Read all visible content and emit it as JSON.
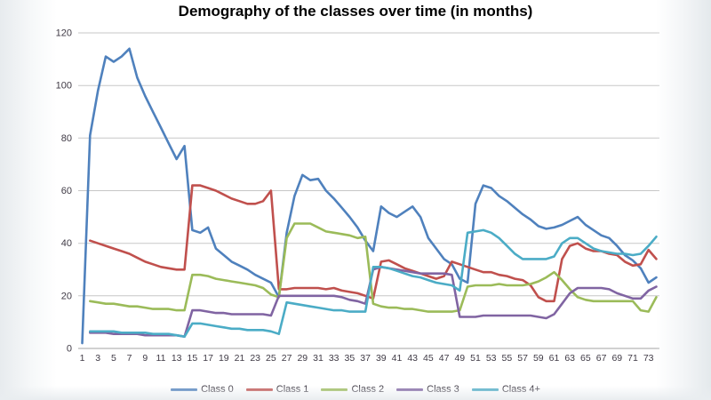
{
  "title": "Demography of the classes over time (in months)",
  "axis": {
    "label_color": "#3f3a45",
    "grid_color": "#c7c7c7",
    "axis_line_color": "#a3a3a3",
    "y_tick_labels": [
      "0",
      "20",
      "40",
      "60",
      "80",
      "100",
      "120"
    ],
    "x_tick_labels": [
      "1",
      "3",
      "5",
      "7",
      "9",
      "11",
      "13",
      "15",
      "17",
      "19",
      "21",
      "23",
      "25",
      "27",
      "29",
      "31",
      "33",
      "35",
      "37",
      "39",
      "41",
      "43",
      "45",
      "47",
      "49",
      "51",
      "53",
      "55",
      "57",
      "59",
      "61",
      "63",
      "65",
      "67",
      "69",
      "71",
      "73"
    ]
  },
  "chart_data": {
    "type": "line",
    "title": "Demography of the classes over time (in months)",
    "xlabel": "",
    "ylabel": "",
    "x_range": [
      1,
      74
    ],
    "ylim": [
      0,
      120
    ],
    "y_ticks": [
      0,
      20,
      40,
      60,
      80,
      100,
      120
    ],
    "grid": "horizontal",
    "legend_position": "bottom",
    "series": [
      {
        "name": "Class 0",
        "color": "#4F81BD",
        "values": [
          2,
          81,
          98,
          111,
          109,
          111,
          114,
          103,
          96,
          90,
          84,
          78,
          72,
          77,
          45,
          44,
          46,
          38,
          35.5,
          33,
          31.5,
          30,
          28,
          26.5,
          25,
          19.5,
          44,
          58,
          66,
          64,
          64.5,
          60,
          57,
          53.5,
          50,
          46,
          41,
          37,
          54,
          51.5,
          50,
          52,
          54,
          50,
          42,
          38,
          34,
          32,
          26.5,
          25,
          55,
          62,
          61,
          58,
          56,
          53.5,
          51,
          49,
          46.5,
          45.5,
          46,
          47,
          48.5,
          50,
          47,
          45,
          43,
          42,
          39,
          35.5,
          33.5,
          30.5,
          25,
          27
        ]
      },
      {
        "name": "Class 1",
        "color": "#C0504D",
        "values": [
          null,
          41,
          40,
          39,
          38,
          37,
          36,
          34.5,
          33,
          32,
          31,
          30.5,
          30,
          30,
          62,
          62,
          61,
          60,
          58.5,
          57,
          56,
          55,
          55,
          56,
          60,
          22.5,
          22.5,
          23,
          23,
          23,
          23,
          22.5,
          23,
          22,
          21.5,
          21,
          20,
          19,
          33,
          33.5,
          32,
          30.5,
          29.5,
          28.5,
          27.5,
          26.5,
          27.5,
          33,
          32,
          31,
          30,
          29,
          29,
          28,
          27.5,
          26.5,
          26,
          24,
          19.5,
          18,
          18,
          34,
          39,
          40,
          38,
          37,
          37,
          36,
          35.5,
          33,
          31.5,
          32,
          37.5,
          34
        ]
      },
      {
        "name": "Class 2",
        "color": "#9BBB59",
        "values": [
          null,
          18,
          17.5,
          17,
          17,
          16.5,
          16,
          16,
          15.5,
          15,
          15,
          15,
          14.5,
          14.5,
          28,
          28,
          27.5,
          26.5,
          26,
          25.5,
          25,
          24.5,
          24,
          23,
          20.5,
          19.5,
          42,
          47.5,
          47.5,
          47.5,
          46,
          44.5,
          44,
          43.5,
          43,
          42,
          42.5,
          17,
          16,
          15.5,
          15.5,
          15,
          15,
          14.5,
          14,
          14,
          14,
          14,
          14.5,
          23.5,
          24,
          24,
          24,
          24.5,
          24,
          24,
          24,
          24.5,
          25.5,
          27,
          29,
          26,
          22.5,
          19.5,
          18.5,
          18,
          18,
          18,
          18,
          18,
          18,
          14.5,
          14,
          19.5
        ]
      },
      {
        "name": "Class 3",
        "color": "#8064A2",
        "values": [
          null,
          6,
          6,
          6,
          5.5,
          5.5,
          5.5,
          5.5,
          5,
          5,
          5,
          5,
          5,
          4.5,
          14.5,
          14.5,
          14,
          13.5,
          13.5,
          13,
          13,
          13,
          13,
          13,
          12.5,
          20,
          20,
          20,
          20,
          20,
          20,
          20,
          20,
          19.5,
          18.5,
          18,
          17,
          30,
          31,
          30.5,
          30,
          29.5,
          29,
          28.5,
          28.5,
          28.5,
          28.5,
          28,
          12,
          12,
          12,
          12.5,
          12.5,
          12.5,
          12.5,
          12.5,
          12.5,
          12.5,
          12,
          11.5,
          13,
          17,
          21,
          23,
          23,
          23,
          23,
          22.5,
          21,
          20,
          19,
          19,
          22,
          23.5
        ]
      },
      {
        "name": "Class 4+",
        "color": "#4BACC6",
        "values": [
          null,
          6.5,
          6.5,
          6.5,
          6.5,
          6,
          6,
          6,
          6,
          5.5,
          5.5,
          5.5,
          5,
          4.5,
          9.5,
          9.5,
          9,
          8.5,
          8,
          7.5,
          7.5,
          7,
          7,
          7,
          6.5,
          5.5,
          17.5,
          17,
          16.5,
          16,
          15.5,
          15,
          14.5,
          14.5,
          14,
          14,
          14,
          31,
          31,
          30.5,
          29.5,
          28.5,
          27.5,
          27,
          26,
          25,
          24.5,
          24,
          22,
          44,
          44.5,
          45,
          44,
          42,
          39,
          36,
          34,
          34,
          34,
          34,
          35,
          40,
          42,
          42,
          40,
          38,
          37,
          36.5,
          36,
          36,
          35.5,
          36,
          39,
          42.5
        ]
      }
    ]
  }
}
